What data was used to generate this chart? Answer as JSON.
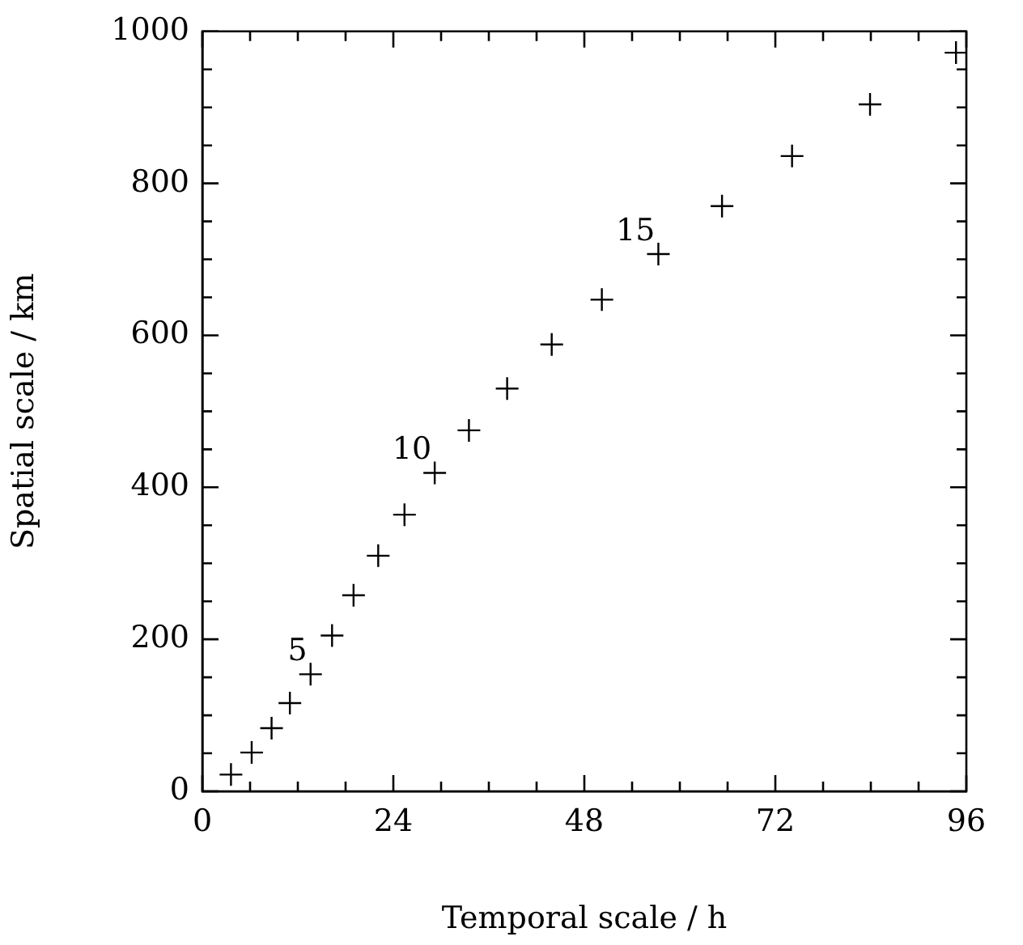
{
  "chart_data": {
    "type": "scatter",
    "xlabel": "Temporal scale / h",
    "ylabel": "Spatial scale / km",
    "x": [
      3.6,
      6.2,
      8.7,
      11.0,
      13.6,
      16.3,
      19.0,
      22.1,
      25.4,
      29.2,
      33.5,
      38.3,
      43.9,
      50.2,
      57.3,
      65.3,
      74.1,
      83.9,
      94.7
    ],
    "values": [
      22,
      51,
      83,
      116,
      154,
      205,
      258,
      310,
      364,
      419,
      475,
      530,
      588,
      647,
      707,
      770,
      836,
      904,
      972
    ],
    "color": "#000000",
    "marker": "cross",
    "grid": false,
    "legend": false,
    "xlim": [
      0,
      96
    ],
    "ylim": [
      0,
      1000
    ],
    "xticks": [
      0,
      {
        "value": 6,
        "label": null
      },
      {
        "value": 12,
        "label": null
      },
      {
        "value": 18,
        "label": null
      },
      24,
      {
        "value": 30,
        "label": null
      },
      {
        "value": 36,
        "label": null
      },
      {
        "value": 42,
        "label": null
      },
      48,
      {
        "value": 54,
        "label": null
      },
      {
        "value": 60,
        "label": null
      },
      {
        "value": 66,
        "label": null
      },
      72,
      {
        "value": 78,
        "label": null
      },
      {
        "value": 84,
        "label": null
      },
      {
        "value": 90,
        "label": null
      },
      96
    ],
    "yticks": [
      0,
      {
        "value": 50,
        "label": null
      },
      {
        "value": 100,
        "label": null
      },
      {
        "value": 150,
        "label": null
      },
      200,
      {
        "value": 250,
        "label": null
      },
      {
        "value": 300,
        "label": null
      },
      {
        "value": 350,
        "label": null
      },
      400,
      {
        "value": 450,
        "label": null
      },
      {
        "value": 500,
        "label": null
      },
      {
        "value": 550,
        "label": null
      },
      600,
      {
        "value": 650,
        "label": null
      },
      {
        "value": 700,
        "label": null
      },
      {
        "value": 750,
        "label": null
      },
      800,
      {
        "value": 850,
        "label": null
      },
      {
        "value": 900,
        "label": null
      },
      {
        "value": 950,
        "label": null
      },
      1000
    ],
    "annotations": [
      {
        "text": "5",
        "x": 13.6,
        "y": 154
      },
      {
        "text": "10",
        "x": 29.2,
        "y": 419
      },
      {
        "text": "15",
        "x": 57.3,
        "y": 707
      }
    ]
  }
}
